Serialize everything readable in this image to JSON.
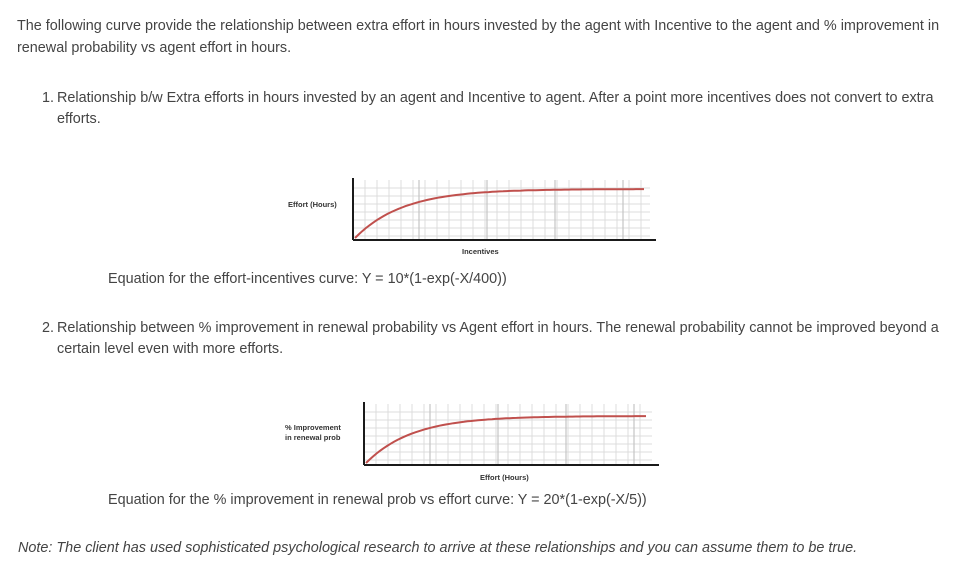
{
  "intro": "The following curve provide the relationship between extra effort in hours invested by the agent with Incentive to the agent and % improvement in renewal probability vs agent effort in hours.",
  "items": [
    {
      "number": "1.",
      "text": "Relationship b/w Extra efforts in hours invested by an agent and Incentive to agent. After a point more incentives does not convert to extra efforts.",
      "chart": {
        "type": "line",
        "ylabel": "Effort (Hours)",
        "xlabel": "Incentives",
        "shape": "saturating-exponential",
        "grid": true
      },
      "equation": "Equation for the effort-incentives curve: Y = 10*(1-exp(-X/400))"
    },
    {
      "number": "2.",
      "text": "Relationship between % improvement in renewal probability vs Agent effort in hours. The renewal probability cannot be improved beyond a certain level even with more efforts.",
      "chart": {
        "type": "line",
        "ylabel": [
          "% Improvement",
          "in renewal prob"
        ],
        "xlabel": "Effort (Hours)",
        "shape": "saturating-exponential",
        "grid": true
      },
      "equation": "Equation for the % improvement in renewal prob vs effort curve: Y = 20*(1-exp(-X/5))"
    }
  ],
  "note": "Note: The client has used sophisticated psychological research to arrive at these relationships and you can assume them to be true.",
  "colors": {
    "text": "#444444",
    "curve": "#c0504d",
    "axis": "#1a1a1a",
    "grid": "#dcdcdc"
  }
}
